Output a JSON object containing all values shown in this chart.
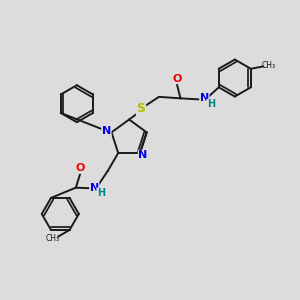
{
  "bg_color": "#dcdcdc",
  "bond_color": "#1a1a1a",
  "N_color": "#0000ee",
  "O_color": "#ee0000",
  "S_color": "#bbbb00",
  "H_color": "#008888",
  "figsize": [
    3.0,
    3.0
  ],
  "dpi": 100,
  "xlim": [
    0,
    10
  ],
  "ylim": [
    0,
    10
  ]
}
